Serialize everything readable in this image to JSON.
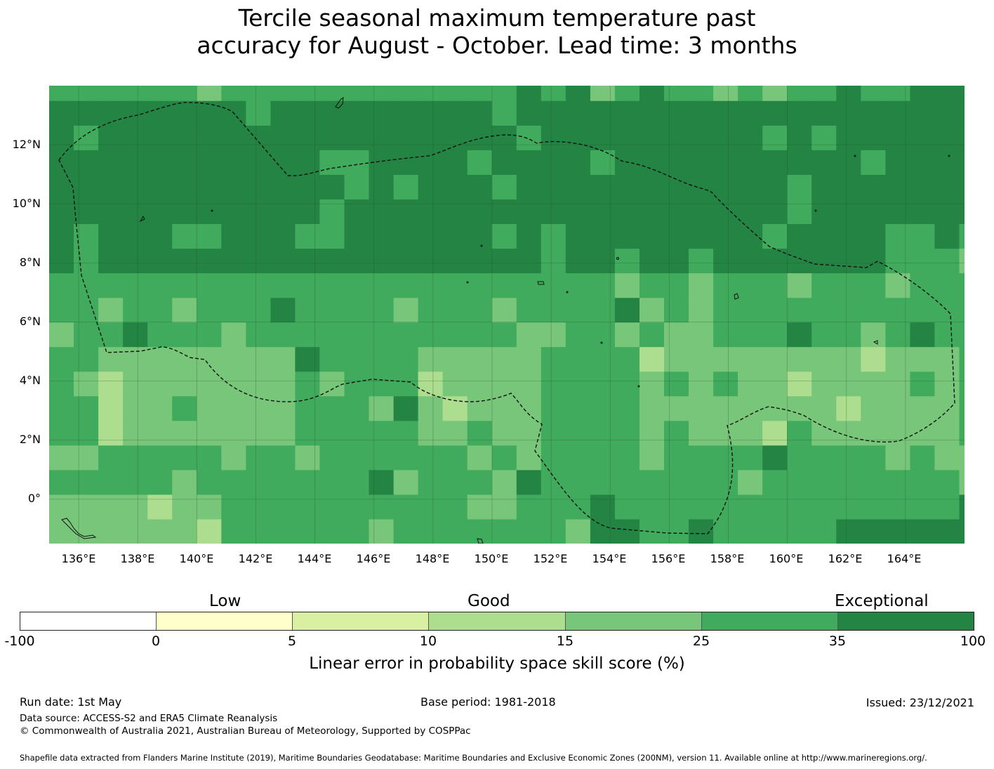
{
  "title": {
    "line1": "Tercile seasonal maximum temperature past",
    "line2": "accuracy for August - October. Lead time: 3 months"
  },
  "map": {
    "lon_range": [
      135.0,
      166.0
    ],
    "lat_range": [
      -1.5,
      14.0
    ],
    "lat_ticks": [
      "12°N",
      "10°N",
      "8°N",
      "6°N",
      "4°N",
      "2°N",
      "0°"
    ],
    "lon_ticks": [
      "136°E",
      "138°E",
      "140°E",
      "142°E",
      "144°E",
      "146°E",
      "148°E",
      "150°E",
      "152°E",
      "154°E",
      "156°E",
      "158°E",
      "160°E",
      "162°E",
      "164°E"
    ],
    "gridlines": true,
    "eez_boundary": "dashed"
  },
  "legend": {
    "categories": {
      "low": "Low",
      "good": "Good",
      "exceptional": "Exceptional"
    },
    "ticks": [
      "-100",
      "0",
      "5",
      "10",
      "15",
      "25",
      "35",
      "100"
    ],
    "colors": [
      "#ffffff",
      "#ffffcc",
      "#d9f0a3",
      "#addd8e",
      "#78c679",
      "#41ab5d",
      "#238443"
    ],
    "label": "Linear error in probability space skill score (%)"
  },
  "footer": {
    "run_date": "Run date: 1st May",
    "base_period": "Base period: 1981-2018",
    "issued": "Issued: 23/12/2021",
    "data_source": "Data source: ACCESS-S2 and ERA5 Climate Reanalysis",
    "copyright": "© Commonwealth of Australia 2021, Australian Bureau of Meteorology, Supported by COSPPac",
    "shapefile": "Shapefile data extracted from Flanders Marine Institute (2019), Maritime Boundaries Geodatabase: Maritime Boundaries and Exclusive Economic Zones (200NM), version 11. Available online at http://www.marineregions.org/."
  }
}
